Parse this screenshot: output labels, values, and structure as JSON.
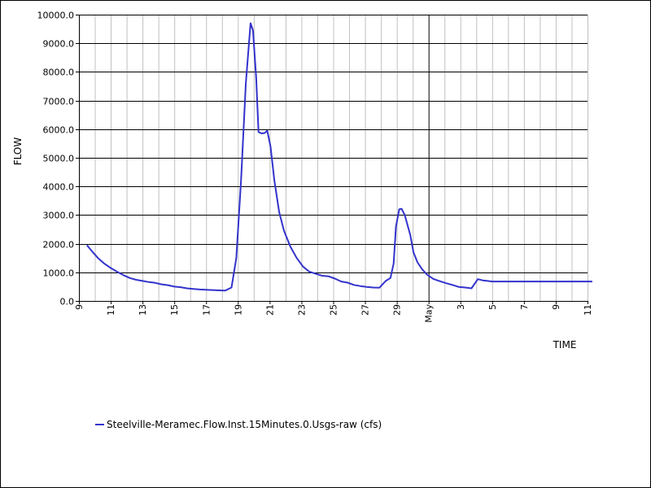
{
  "chart_data": {
    "type": "line",
    "title": "",
    "xlabel": "TIME",
    "ylabel": "FLOW",
    "ylim": [
      0,
      10000
    ],
    "y_ticks": [
      "0.0",
      "1000.0",
      "2000.0",
      "3000.0",
      "4000.0",
      "5000.0",
      "6000.0",
      "7000.0",
      "8000.0",
      "9000.0",
      "10000.0"
    ],
    "x_ticks": [
      "9",
      "11",
      "13",
      "15",
      "17",
      "19",
      "21",
      "23",
      "25",
      "27",
      "29",
      "May",
      "3",
      "5",
      "7",
      "9",
      "11"
    ],
    "x_range": [
      0,
      32
    ],
    "grid": true,
    "legend_position": "bottom-left",
    "colors": {
      "series": "#3333cc",
      "major_grid": "#000000",
      "minor_grid": "#c0c0c0",
      "background": "#ffffff"
    },
    "series": [
      {
        "name": "Steelville-Meramec.Flow.Inst.15Minutes.0.Usgs-raw (cfs)",
        "x": [
          0.5,
          0.8,
          1.2,
          1.6,
          2.0,
          2.4,
          2.8,
          3.2,
          3.6,
          4.0,
          4.4,
          4.8,
          5.2,
          5.6,
          6.0,
          6.4,
          6.8,
          7.2,
          7.6,
          8.0,
          8.4,
          8.8,
          9.2,
          9.6,
          9.9,
          10.2,
          10.5,
          10.8,
          10.95,
          11.15,
          11.3,
          11.5,
          11.7,
          11.85,
          12.05,
          12.3,
          12.6,
          12.9,
          13.3,
          13.7,
          14.1,
          14.5,
          14.9,
          15.3,
          15.7,
          16.1,
          16.5,
          16.9,
          17.3,
          17.7,
          18.1,
          18.5,
          18.9,
          19.3,
          19.6,
          19.8,
          19.95,
          20.15,
          20.3,
          20.5,
          20.7,
          20.85,
          21.05,
          21.3,
          21.6,
          21.9,
          22.3,
          22.7,
          23.1,
          23.5,
          23.9,
          24.3,
          24.7,
          25.1,
          25.4,
          25.7,
          26.0,
          26.4,
          26.8,
          27.2,
          27.6,
          28.0,
          28.4,
          28.9,
          29.2,
          29.5,
          29.9,
          30.2,
          30.5,
          30.7,
          30.9,
          31.05,
          31.2,
          31.4,
          31.7,
          32.0,
          32.3
        ],
        "values": [
          1950,
          1750,
          1500,
          1300,
          1150,
          1020,
          900,
          800,
          740,
          700,
          660,
          630,
          580,
          550,
          500,
          480,
          440,
          420,
          400,
          390,
          380,
          370,
          360,
          470,
          1500,
          4200,
          7600,
          9700,
          9450,
          7800,
          5900,
          5850,
          5870,
          5950,
          5400,
          4200,
          3100,
          2450,
          1900,
          1500,
          1200,
          1020,
          950,
          880,
          860,
          780,
          680,
          640,
          560,
          520,
          490,
          470,
          460,
          700,
          800,
          1300,
          2600,
          3200,
          3220,
          3000,
          2600,
          2300,
          1700,
          1350,
          1100,
          920,
          770,
          690,
          620,
          560,
          490,
          470,
          440,
          760,
          720,
          700,
          680,
          680,
          680,
          680,
          680,
          680,
          680,
          680,
          680,
          680,
          680,
          680,
          680,
          680,
          680,
          680,
          680,
          680,
          680,
          680,
          680
        ]
      }
    ]
  }
}
